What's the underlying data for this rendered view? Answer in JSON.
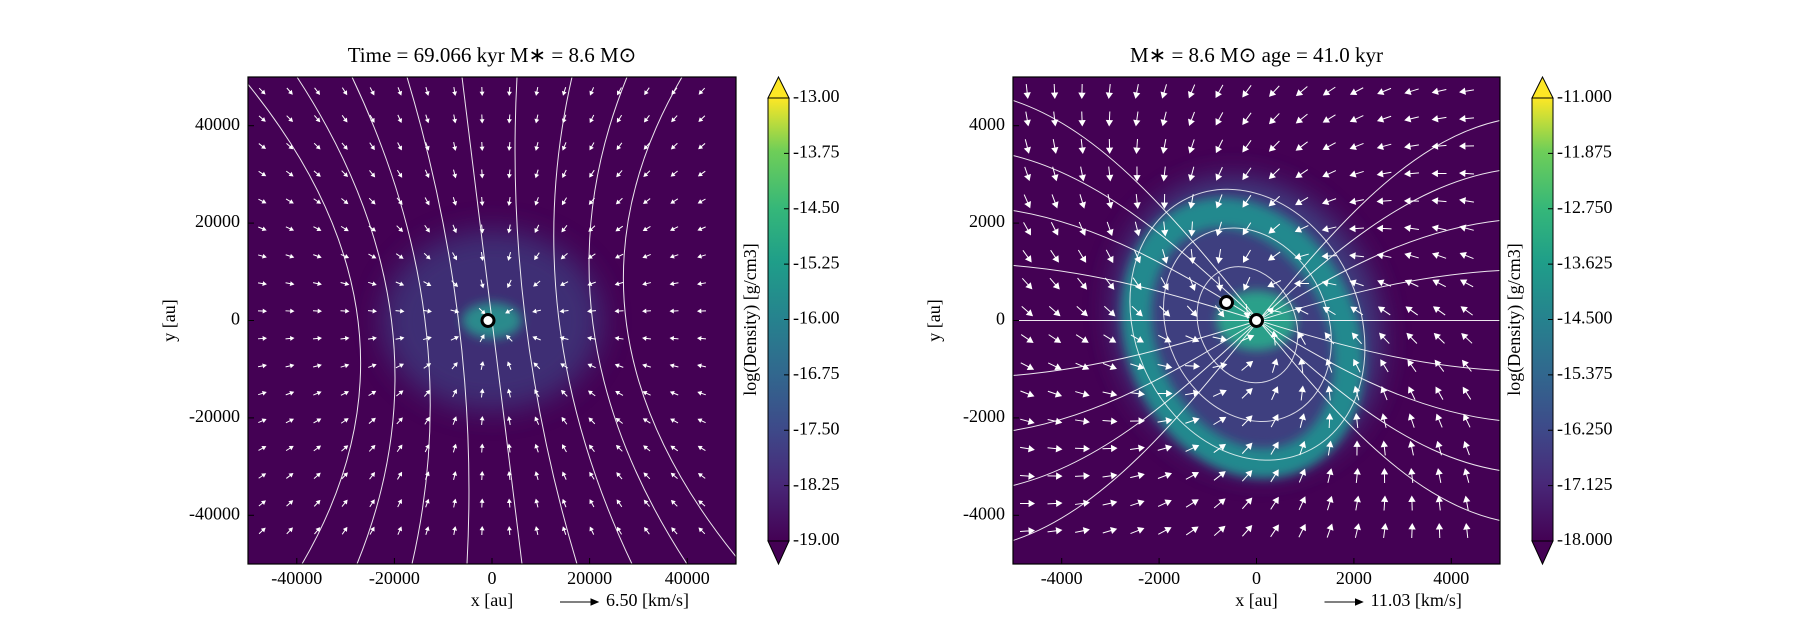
{
  "chart_data": [
    {
      "type": "density-map",
      "title": "Time = 69.066 kyr    M∗ = 8.6 M⊙",
      "xlabel": "x [au]",
      "ylabel": "y [au]",
      "xlim": [
        -50000,
        50000
      ],
      "ylim": [
        -50000,
        50000
      ],
      "xticks": [
        -40000,
        -20000,
        0,
        20000,
        40000
      ],
      "yticks": [
        -40000,
        -20000,
        0,
        20000,
        40000
      ],
      "colorbar": {
        "label": "log(Density) [g/cm3]",
        "lim": [
          -19,
          -13
        ],
        "ticks": [
          {
            "value": -13,
            "label": "-13.00"
          },
          {
            "value": -13.75,
            "label": "-13.75"
          },
          {
            "value": -14.5,
            "label": "-14.50"
          },
          {
            "value": -15.25,
            "label": "-15.25"
          },
          {
            "value": -16,
            "label": "-16.00"
          },
          {
            "value": -16.75,
            "label": "-16.75"
          },
          {
            "value": -17.5,
            "label": "-17.50"
          },
          {
            "value": -18.25,
            "label": "-18.25"
          },
          {
            "value": -19,
            "label": "-19.00"
          }
        ]
      },
      "quiver_key": "6.50 [km/s]"
    },
    {
      "type": "density-map",
      "title": "M∗ = 8.6 M⊙          age = 41.0 kyr",
      "xlabel": "x [au]",
      "ylabel": "y [au]",
      "xlim": [
        -5000,
        5000
      ],
      "ylim": [
        -5000,
        5000
      ],
      "xticks": [
        -4000,
        -2000,
        0,
        2000,
        4000
      ],
      "yticks": [
        -4000,
        -2000,
        0,
        2000,
        4000
      ],
      "colorbar": {
        "label": "log(Density) [g/cm3]",
        "lim": [
          -18,
          -11
        ],
        "ticks": [
          {
            "value": -11,
            "label": "-11.000"
          },
          {
            "value": -11.875,
            "label": "-11.875"
          },
          {
            "value": -12.75,
            "label": "-12.750"
          },
          {
            "value": -13.625,
            "label": "-13.625"
          },
          {
            "value": -14.5,
            "label": "-14.500"
          },
          {
            "value": -15.375,
            "label": "-15.375"
          },
          {
            "value": -16.25,
            "label": "-16.250"
          },
          {
            "value": -17.125,
            "label": "-17.125"
          },
          {
            "value": -18,
            "label": "-18.000"
          }
        ]
      },
      "quiver_key": "11.03 [km/s]"
    }
  ]
}
